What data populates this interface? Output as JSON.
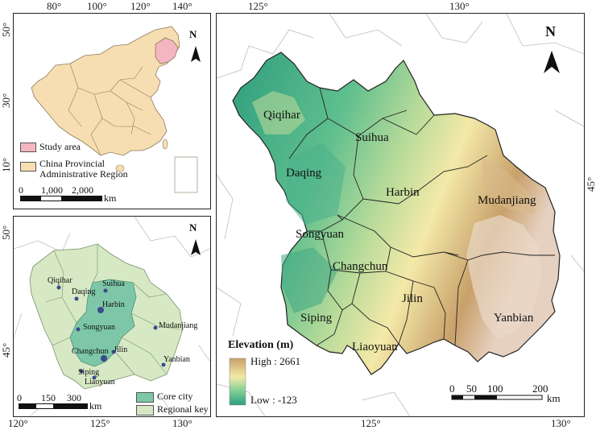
{
  "inset_china": {
    "top_ticks": [
      "80°",
      "100°",
      "120°",
      "140°"
    ],
    "left_ticks": [
      "50°",
      "30°",
      "10°"
    ],
    "north": "N",
    "legend": [
      {
        "label": "Study area",
        "color": "#f4b6c0"
      },
      {
        "label": "China Provincial Administrative Region",
        "color": "#f7deb2"
      }
    ],
    "scale_labels": [
      "0",
      "1,000",
      "2,000"
    ],
    "scale_unit": "km"
  },
  "inset_cities": {
    "left_ticks": [
      "50°",
      "45°"
    ],
    "bottom_ticks": [
      "120°",
      "125°",
      "130°"
    ],
    "north": "N",
    "cities": [
      "Qiqihar",
      "Daqing",
      "Suihua",
      "Harbin",
      "Songyuan",
      "Mudanjiang",
      "Changchun",
      "Jilin",
      "Yanbian",
      "Siping",
      "Liaoyuan"
    ],
    "scale_labels": [
      "0",
      "150",
      "300"
    ],
    "scale_unit": "km",
    "legend": [
      {
        "label": "Core city",
        "color": "#7dc7a8"
      },
      {
        "label": "Regional key city",
        "color": "#d6e9c4"
      }
    ]
  },
  "main_map": {
    "top_ticks": [
      "125°",
      "130°"
    ],
    "bottom_ticks": [
      "125°",
      "130°"
    ],
    "right_ticks": [
      "45°"
    ],
    "north": "N",
    "regions": [
      "Qiqihar",
      "Suihua",
      "Daqing",
      "Harbin",
      "Mudanjiang",
      "Songyuan",
      "Changchun",
      "Jilin",
      "Siping",
      "Yanbian",
      "Liaoyuan"
    ],
    "elevation_title": "Elevation (m)",
    "elevation_high": "High : 2661",
    "elevation_low": "Low : -123",
    "colors": {
      "high": "#c8a06a",
      "mid": "#f4e9a8",
      "low": "#2f9e7e"
    },
    "scale_labels": [
      "0",
      "50",
      "100",
      "200"
    ],
    "scale_unit": "km"
  }
}
